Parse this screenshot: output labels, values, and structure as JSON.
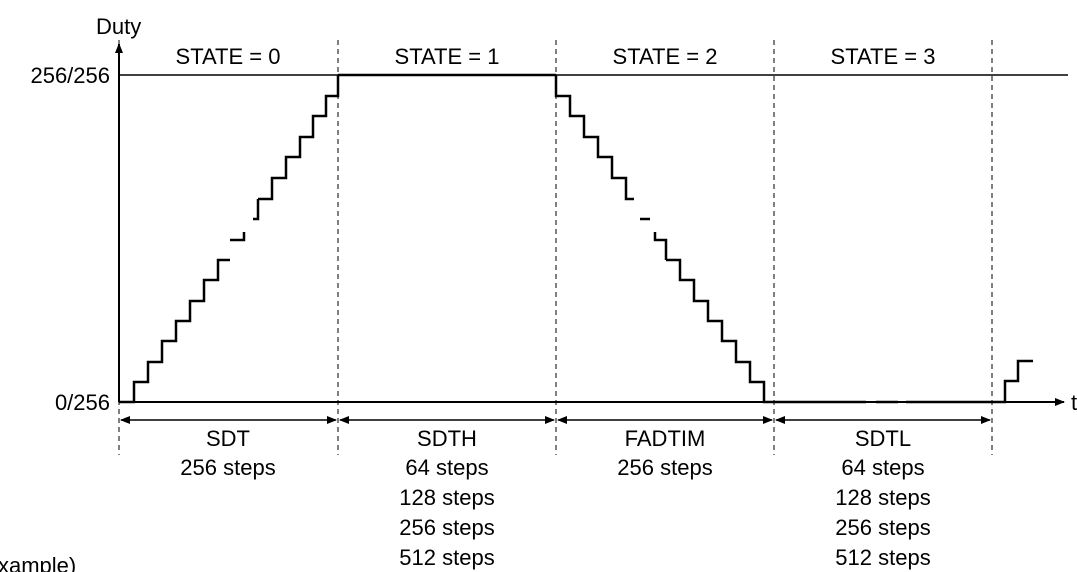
{
  "axes": {
    "y_label": "Duty",
    "x_label": "t",
    "y_top": "256/256",
    "y_bottom": "0/256"
  },
  "states": [
    {
      "label": "STATE = 0"
    },
    {
      "label": "STATE = 1"
    },
    {
      "label": "STATE = 2"
    },
    {
      "label": "STATE = 3"
    }
  ],
  "intervals": [
    {
      "name": "SDT",
      "steps": [
        "256 steps"
      ]
    },
    {
      "name": "SDTH",
      "steps": [
        "64 steps",
        "128 steps",
        "256 steps",
        "512 steps"
      ]
    },
    {
      "name": "FADTIM",
      "steps": [
        "256 steps"
      ]
    },
    {
      "name": "SDTL",
      "steps": [
        "64 steps",
        "128 steps",
        "256 steps",
        "512 steps"
      ]
    }
  ],
  "caption": "xample)"
}
